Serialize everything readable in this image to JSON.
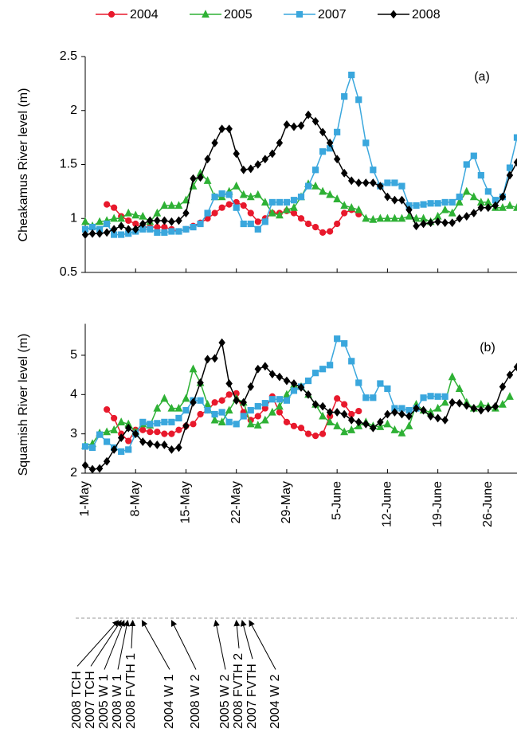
{
  "chart_data": [
    {
      "type": "line",
      "ylabel": "Cheakamus River level (m)",
      "panel_label": "(a)",
      "x": [
        0,
        1,
        2,
        3,
        4,
        5,
        6,
        7,
        8,
        9,
        10,
        11,
        12,
        13,
        14,
        15,
        16,
        17,
        18,
        19,
        20,
        21,
        22,
        23,
        24,
        25,
        26,
        27,
        28,
        29,
        30,
        31,
        32,
        33,
        34,
        35,
        36,
        37,
        38,
        39,
        40,
        41,
        42,
        43,
        44,
        45,
        46,
        47,
        48,
        49,
        50,
        51,
        52,
        53,
        54,
        55,
        56,
        57,
        58,
        59,
        60
      ],
      "xlim": [
        0,
        60
      ],
      "xticks": [
        0,
        7,
        14,
        21,
        28,
        35,
        42,
        49,
        56
      ],
      "ylim": [
        0.5,
        2.5
      ],
      "yticks": [
        0.5,
        1,
        1.5,
        2,
        2.5
      ],
      "series": [
        {
          "name": "2004",
          "color": "#e8192c",
          "marker": "circle",
          "values": [
            null,
            null,
            null,
            1.13,
            1.1,
            1.02,
            0.98,
            0.95,
            0.92,
            0.92,
            0.92,
            0.92,
            0.9,
            0.88,
            0.9,
            0.93,
            0.96,
            1.0,
            1.05,
            1.1,
            1.13,
            1.15,
            1.12,
            1.05,
            0.97,
            1.0,
            1.05,
            1.05,
            1.07,
            1.05,
            1.0,
            0.95,
            0.92,
            0.87,
            0.88,
            0.95,
            1.05,
            1.08,
            1.04,
            null,
            null,
            null,
            null,
            null,
            null,
            null,
            null,
            null,
            null,
            null,
            null,
            null,
            null,
            null,
            null,
            null,
            null,
            null,
            null,
            null,
            null
          ]
        },
        {
          "name": "2005",
          "color": "#2eb135",
          "marker": "triangle",
          "values": [
            0.97,
            0.93,
            0.97,
            0.98,
            1.0,
            1.0,
            1.05,
            1.03,
            1.02,
            0.97,
            1.05,
            1.12,
            1.12,
            1.12,
            1.17,
            1.3,
            1.42,
            1.35,
            1.2,
            1.2,
            1.25,
            1.3,
            1.22,
            1.2,
            1.22,
            1.15,
            1.05,
            1.03,
            1.08,
            1.1,
            1.2,
            1.32,
            1.3,
            1.25,
            1.22,
            1.18,
            1.12,
            1.1,
            1.08,
            1.0,
            0.99,
            1.0,
            1.0,
            1.0,
            1.0,
            1.02,
            1.0,
            1.0,
            0.97,
            1.02,
            1.08,
            1.05,
            1.15,
            1.25,
            1.2,
            1.15,
            1.15,
            1.1,
            1.1,
            1.12,
            1.1
          ]
        },
        {
          "name": "2007",
          "color": "#3aa7dd",
          "marker": "square",
          "values": [
            0.9,
            0.92,
            0.9,
            0.95,
            0.85,
            0.85,
            0.86,
            0.88,
            0.9,
            0.9,
            0.87,
            0.87,
            0.88,
            0.88,
            0.9,
            0.92,
            0.95,
            1.05,
            1.2,
            1.23,
            1.22,
            1.1,
            0.95,
            0.95,
            0.9,
            0.97,
            1.15,
            1.15,
            1.15,
            1.17,
            1.2,
            1.3,
            1.45,
            1.62,
            1.65,
            1.8,
            2.13,
            2.33,
            2.1,
            1.7,
            1.45,
            1.3,
            1.33,
            1.33,
            1.3,
            1.12,
            1.12,
            1.13,
            1.14,
            1.14,
            1.15,
            1.15,
            1.2,
            1.5,
            1.58,
            1.4,
            1.25,
            1.17,
            1.2,
            1.47,
            1.75
          ]
        },
        {
          "name": "2008",
          "color": "#000000",
          "marker": "diamond",
          "values": [
            0.85,
            0.86,
            0.86,
            0.87,
            0.9,
            0.93,
            0.9,
            0.9,
            0.95,
            0.98,
            0.98,
            0.98,
            0.97,
            0.98,
            1.05,
            1.37,
            1.38,
            1.55,
            1.7,
            1.83,
            1.83,
            1.6,
            1.45,
            1.46,
            1.5,
            1.55,
            1.6,
            1.7,
            1.87,
            1.85,
            1.86,
            1.96,
            1.9,
            1.8,
            1.7,
            1.55,
            1.42,
            1.35,
            1.33,
            1.33,
            1.33,
            1.3,
            1.2,
            1.17,
            1.17,
            1.08,
            0.93,
            0.95,
            0.96,
            0.97,
            0.96,
            0.96,
            1.0,
            1.02,
            1.05,
            1.1,
            1.1,
            1.12,
            1.2,
            1.4,
            1.52
          ]
        }
      ]
    },
    {
      "type": "line",
      "ylabel": "Squamish River level (m)",
      "panel_label": "(b)",
      "x": [
        0,
        1,
        2,
        3,
        4,
        5,
        6,
        7,
        8,
        9,
        10,
        11,
        12,
        13,
        14,
        15,
        16,
        17,
        18,
        19,
        20,
        21,
        22,
        23,
        24,
        25,
        26,
        27,
        28,
        29,
        30,
        31,
        32,
        33,
        34,
        35,
        36,
        37,
        38,
        39,
        40,
        41,
        42,
        43,
        44,
        45,
        46,
        47,
        48,
        49,
        50,
        51,
        52,
        53,
        54,
        55,
        56,
        57,
        58,
        59,
        60
      ],
      "xlim": [
        0,
        60
      ],
      "xticks": [
        {
          "value": 0,
          "label": "1-May"
        },
        {
          "value": 7,
          "label": "8-May"
        },
        {
          "value": 14,
          "label": "15-May"
        },
        {
          "value": 21,
          "label": "22-May"
        },
        {
          "value": 28,
          "label": "29-May"
        },
        {
          "value": 35,
          "label": "5-June"
        },
        {
          "value": 42,
          "label": "12-June"
        },
        {
          "value": 49,
          "label": "19-June"
        },
        {
          "value": 56,
          "label": "26-June"
        }
      ],
      "ylim": [
        2,
        5.8
      ],
      "yticks": [
        2,
        3,
        4,
        5
      ],
      "series": [
        {
          "color": "#e8192c",
          "marker": "circle",
          "values": [
            null,
            null,
            null,
            3.62,
            3.4,
            3.0,
            2.82,
            3.1,
            3.1,
            3.05,
            3.05,
            3.0,
            3.0,
            3.1,
            3.2,
            3.25,
            3.5,
            3.6,
            3.8,
            3.85,
            4.0,
            4.03,
            3.55,
            3.35,
            3.45,
            3.65,
            3.95,
            3.55,
            3.3,
            3.2,
            3.15,
            3.0,
            2.95,
            3.0,
            3.45,
            3.9,
            3.75,
            3.5,
            3.58,
            null,
            null,
            null,
            null,
            null,
            null,
            null,
            null,
            null,
            null,
            null,
            null,
            null,
            null,
            null,
            null,
            null,
            null,
            null,
            null,
            null,
            null
          ]
        },
        {
          "color": "#2eb135",
          "marker": "triangle",
          "values": [
            2.7,
            2.75,
            3.02,
            3.05,
            3.1,
            3.3,
            3.25,
            3.05,
            3.25,
            3.22,
            3.65,
            3.9,
            3.65,
            3.65,
            3.9,
            4.65,
            4.3,
            3.75,
            3.35,
            3.3,
            3.6,
            3.9,
            3.8,
            3.25,
            3.22,
            3.35,
            3.55,
            3.7,
            4.0,
            4.25,
            4.2,
            4.0,
            3.75,
            3.45,
            3.3,
            3.2,
            3.05,
            3.1,
            3.2,
            3.3,
            3.2,
            3.18,
            3.25,
            3.1,
            3.02,
            3.2,
            3.75,
            3.6,
            3.55,
            3.65,
            3.8,
            4.45,
            4.15,
            3.8,
            3.65,
            3.75,
            3.7,
            3.65,
            3.75,
            3.95,
            null
          ]
        },
        {
          "color": "#3aa7dd",
          "marker": "square",
          "values": [
            2.68,
            2.65,
            2.98,
            2.8,
            2.65,
            2.55,
            2.6,
            3.0,
            3.3,
            3.25,
            3.27,
            3.3,
            3.3,
            3.4,
            3.6,
            3.85,
            3.85,
            3.6,
            3.5,
            3.55,
            3.3,
            3.25,
            3.45,
            3.6,
            3.7,
            3.78,
            3.88,
            3.88,
            3.85,
            4.1,
            4.2,
            4.35,
            4.55,
            4.65,
            4.75,
            5.42,
            5.3,
            4.85,
            4.3,
            3.92,
            3.92,
            4.28,
            4.15,
            3.65,
            3.65,
            3.6,
            3.65,
            3.92,
            3.96,
            3.95,
            3.95,
            null,
            null,
            null,
            null,
            null,
            null,
            null,
            null,
            null,
            null
          ]
        },
        {
          "color": "#000000",
          "marker": "diamond",
          "values": [
            2.2,
            2.1,
            2.12,
            2.3,
            2.6,
            2.9,
            3.15,
            3.0,
            2.8,
            2.75,
            2.72,
            2.72,
            2.6,
            2.65,
            3.2,
            3.8,
            4.3,
            4.9,
            4.92,
            5.32,
            4.28,
            3.85,
            3.8,
            4.2,
            4.65,
            4.72,
            4.52,
            4.45,
            4.35,
            4.28,
            4.18,
            4.0,
            3.75,
            3.7,
            3.55,
            3.55,
            3.5,
            3.35,
            3.3,
            3.25,
            3.15,
            3.3,
            3.5,
            3.55,
            3.5,
            3.45,
            3.65,
            3.6,
            3.45,
            3.4,
            3.35,
            3.8,
            3.78,
            3.72,
            3.65,
            3.6,
            3.65,
            3.7,
            4.2,
            4.5,
            4.7
          ]
        }
      ]
    }
  ],
  "annotations": [
    {
      "text": "2008 TCH",
      "color": "#000000",
      "x": 4.6
    },
    {
      "text": "2007 TCH",
      "color": "#3aa7dd",
      "x": 5.0
    },
    {
      "text": "2005 W 1",
      "color": "#2eb135",
      "x": 5.4
    },
    {
      "text": "2008 W 1",
      "color": "#000000",
      "x": 5.9
    },
    {
      "text": "2008 FVTH 1",
      "color": "#000000",
      "x": 6.6
    },
    {
      "text": "2004 W 1",
      "color": "#e8192c",
      "x": 7.9
    },
    {
      "text": "2008 W 2",
      "color": "#000000",
      "x": 12.0
    },
    {
      "text": "2005 W 2",
      "color": "#2eb135",
      "x": 18.1
    },
    {
      "text": "2008 FVTH 2",
      "color": "#000000",
      "x": 21.0
    },
    {
      "text": "2007 FVTH",
      "color": "#3aa7dd",
      "x": 21.8
    },
    {
      "text": "2004 W 2",
      "color": "#e8192c",
      "x": 22.8
    }
  ]
}
